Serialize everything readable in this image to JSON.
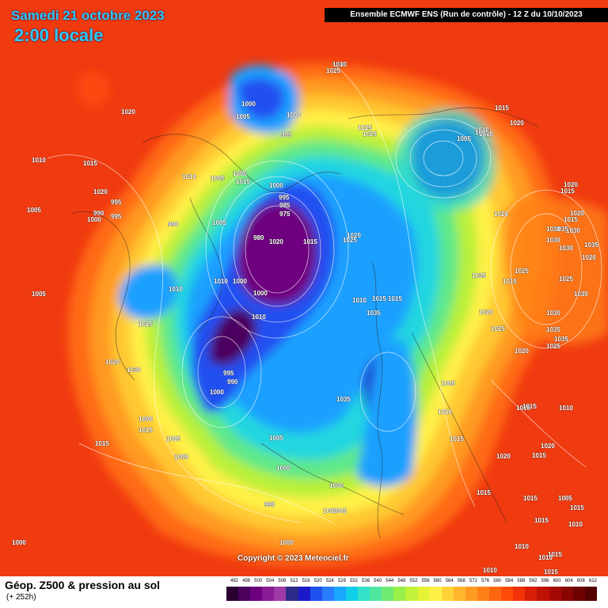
{
  "header": {
    "date": "Samedi 21 octobre 2023",
    "local_time": "2:00 locale",
    "model_run": "Ensemble ECMWF ENS  (Run de contrôle)  -  12 Z du 10/10/2023"
  },
  "footer": {
    "title": "Géop. Z500 & pression au sol",
    "subtitle": "(+ 252h)",
    "copyright": "Copyright © 2023 Meteociel.fr"
  },
  "scale": {
    "labels": [
      "492",
      "496",
      "500",
      "504",
      "508",
      "512",
      "516",
      "520",
      "524",
      "528",
      "532",
      "536",
      "540",
      "544",
      "548",
      "552",
      "556",
      "560",
      "564",
      "568",
      "572",
      "576",
      "580",
      "584",
      "588",
      "592",
      "596",
      "600",
      "604",
      "608",
      "612"
    ],
    "colors": [
      "#2a0030",
      "#4b005e",
      "#6e007f",
      "#8a1b94",
      "#9e3aa6",
      "#2b2b8a",
      "#1a1ac8",
      "#2050f0",
      "#2a7cff",
      "#1aa8ff",
      "#11cfe8",
      "#33e0c8",
      "#50e6a0",
      "#70ea70",
      "#98ef4a",
      "#c2f23a",
      "#e6f236",
      "#fff046",
      "#ffd23a",
      "#ffb62e",
      "#ff9a22",
      "#ff8018",
      "#ff6610",
      "#ff4c0a",
      "#f23208",
      "#d81e06",
      "#be1204",
      "#a40a03",
      "#880502",
      "#6e0202",
      "#550000"
    ]
  },
  "pressure_labels": [
    "1030",
    "1025",
    "1000",
    "1005",
    "1000",
    "995",
    "1020",
    "1010",
    "1015",
    "1025",
    "1025",
    "1015",
    "1020",
    "1010",
    "1010",
    "1005",
    "1005",
    "1020",
    "1015",
    "1020",
    "1015",
    "1010",
    "1000",
    "1015",
    "1020",
    "995",
    "990",
    "1005",
    "1000",
    "995",
    "990",
    "1005",
    "1000",
    "995",
    "985",
    "975",
    "980",
    "1020",
    "1015",
    "1020",
    "1025",
    "1020",
    "1035",
    "1025",
    "1015",
    "1030",
    "1035",
    "1030",
    "1030",
    "1030",
    "1005",
    "1015",
    "1010",
    "1010",
    "1000",
    "1000",
    "1010",
    "1005",
    "1020",
    "1030",
    "1025",
    "1035",
    "1025",
    "1030",
    "1035",
    "1020",
    "1030",
    "1035",
    "1025",
    "1020",
    "1020",
    "1035",
    "995",
    "990",
    "1000",
    "1005",
    "1010",
    "1010",
    "1035",
    "1005",
    "1000",
    "1015",
    "1010",
    "1010",
    "1000",
    "1005",
    "1000",
    "1005",
    "1005",
    "1000",
    "1015",
    "1015",
    "995",
    "1000",
    "1020",
    "1015",
    "1020",
    "1015",
    "1015",
    "1005",
    "1015",
    "1010",
    "1015",
    "1015",
    "1015",
    "1010",
    "1010",
    "1000",
    "1010",
    "1015",
    "1015",
    "1015",
    "1010"
  ]
}
